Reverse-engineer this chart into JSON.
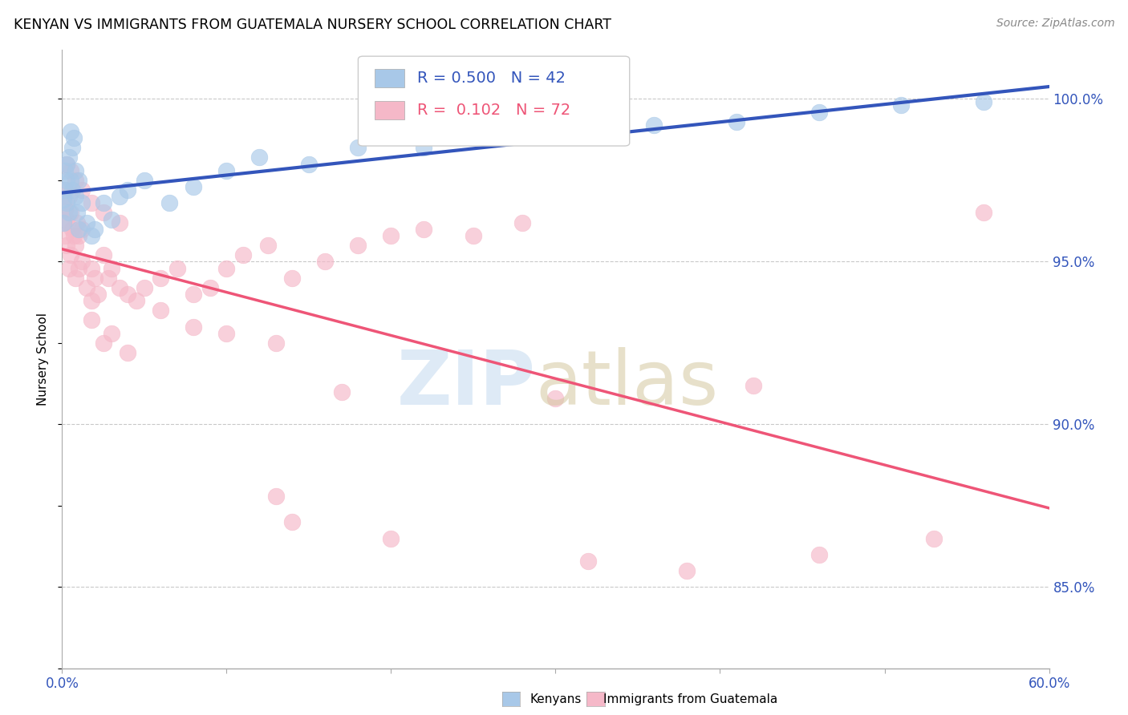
{
  "title": "KENYAN VS IMMIGRANTS FROM GUATEMALA NURSERY SCHOOL CORRELATION CHART",
  "source": "Source: ZipAtlas.com",
  "ylabel": "Nursery School",
  "xlim": [
    0.0,
    0.6
  ],
  "ylim": [
    0.825,
    1.015
  ],
  "right_yticks": [
    0.85,
    0.9,
    0.95,
    1.0
  ],
  "xticks": [
    0.0,
    0.1,
    0.2,
    0.3,
    0.4,
    0.5,
    0.6
  ],
  "kenyan_color": "#a8c8e8",
  "guatemalan_color": "#f5b8c8",
  "kenyan_line_color": "#3355bb",
  "guatemalan_line_color": "#ee5577",
  "R_kenyan": 0.5,
  "N_kenyan": 42,
  "R_guatemalan": 0.102,
  "N_guatemalan": 72,
  "kenyan_x": [
    0.001,
    0.001,
    0.002,
    0.002,
    0.003,
    0.003,
    0.003,
    0.004,
    0.004,
    0.005,
    0.005,
    0.006,
    0.006,
    0.007,
    0.008,
    0.008,
    0.009,
    0.01,
    0.01,
    0.012,
    0.015,
    0.018,
    0.02,
    0.025,
    0.03,
    0.035,
    0.04,
    0.05,
    0.065,
    0.08,
    0.1,
    0.12,
    0.15,
    0.18,
    0.22,
    0.26,
    0.31,
    0.36,
    0.41,
    0.46,
    0.51,
    0.56
  ],
  "kenyan_y": [
    0.962,
    0.969,
    0.972,
    0.978,
    0.968,
    0.975,
    0.98,
    0.965,
    0.982,
    0.99,
    0.975,
    0.972,
    0.985,
    0.988,
    0.97,
    0.978,
    0.965,
    0.96,
    0.975,
    0.968,
    0.962,
    0.958,
    0.96,
    0.968,
    0.963,
    0.97,
    0.972,
    0.975,
    0.968,
    0.973,
    0.978,
    0.982,
    0.98,
    0.985,
    0.985,
    0.988,
    0.99,
    0.992,
    0.993,
    0.996,
    0.998,
    0.999
  ],
  "guatemalan_x": [
    0.001,
    0.001,
    0.002,
    0.002,
    0.002,
    0.003,
    0.003,
    0.004,
    0.004,
    0.005,
    0.005,
    0.006,
    0.007,
    0.008,
    0.008,
    0.009,
    0.01,
    0.01,
    0.012,
    0.012,
    0.015,
    0.018,
    0.018,
    0.02,
    0.022,
    0.025,
    0.028,
    0.03,
    0.035,
    0.04,
    0.045,
    0.05,
    0.06,
    0.07,
    0.08,
    0.09,
    0.1,
    0.11,
    0.125,
    0.14,
    0.16,
    0.18,
    0.2,
    0.22,
    0.25,
    0.28,
    0.06,
    0.08,
    0.1,
    0.13,
    0.003,
    0.005,
    0.008,
    0.012,
    0.018,
    0.025,
    0.035,
    0.018,
    0.025,
    0.03,
    0.04,
    0.17,
    0.3,
    0.42,
    0.13,
    0.14,
    0.2,
    0.32,
    0.38,
    0.46,
    0.53,
    0.56
  ],
  "guatemalan_y": [
    0.962,
    0.97,
    0.958,
    0.966,
    0.972,
    0.955,
    0.963,
    0.948,
    0.97,
    0.952,
    0.965,
    0.96,
    0.958,
    0.945,
    0.955,
    0.962,
    0.948,
    0.958,
    0.95,
    0.96,
    0.942,
    0.938,
    0.948,
    0.945,
    0.94,
    0.952,
    0.945,
    0.948,
    0.942,
    0.94,
    0.938,
    0.942,
    0.945,
    0.948,
    0.94,
    0.942,
    0.948,
    0.952,
    0.955,
    0.945,
    0.95,
    0.955,
    0.958,
    0.96,
    0.958,
    0.962,
    0.935,
    0.93,
    0.928,
    0.925,
    0.98,
    0.978,
    0.975,
    0.972,
    0.968,
    0.965,
    0.962,
    0.932,
    0.925,
    0.928,
    0.922,
    0.91,
    0.908,
    0.912,
    0.878,
    0.87,
    0.865,
    0.858,
    0.855,
    0.86,
    0.865,
    0.965
  ]
}
